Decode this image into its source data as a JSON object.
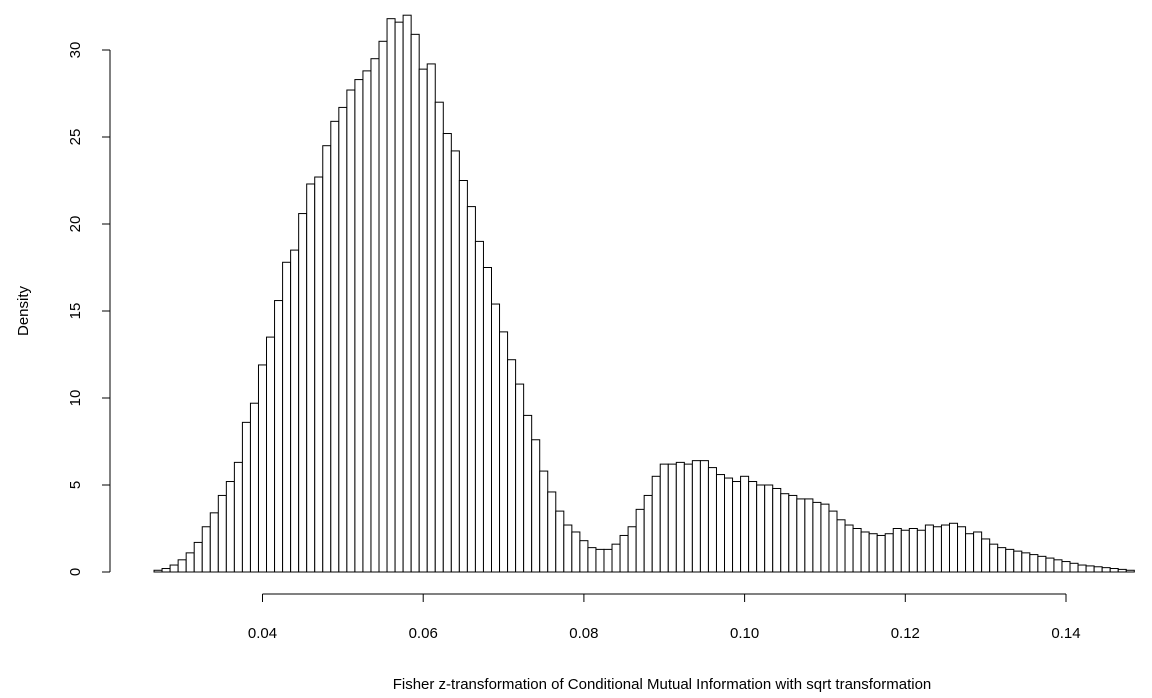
{
  "chart_data": {
    "type": "bar",
    "title": "",
    "xlabel": "Fisher z-transformation of Conditional Mutual Information with sqrt transformation",
    "ylabel": "Density",
    "xlim": [
      0.0265,
      0.1477
    ],
    "ylim": [
      0,
      32
    ],
    "bin_start": 0.0265,
    "bin_width": 0.001,
    "x_ticks": [
      0.04,
      0.06,
      0.08,
      0.1,
      0.12,
      0.14
    ],
    "x_tick_labels": [
      "0.04",
      "0.06",
      "0.08",
      "0.10",
      "0.12",
      "0.14"
    ],
    "y_ticks": [
      0,
      5,
      10,
      15,
      20,
      25,
      30
    ],
    "y_tick_labels": [
      "0",
      "5",
      "10",
      "15",
      "20",
      "25",
      "30"
    ],
    "grid": false,
    "values": [
      0.1,
      0.2,
      0.4,
      0.7,
      1.1,
      1.7,
      2.6,
      3.4,
      4.4,
      5.2,
      6.3,
      8.6,
      9.7,
      11.9,
      13.5,
      15.6,
      17.8,
      18.5,
      20.6,
      22.3,
      22.7,
      24.5,
      25.9,
      26.7,
      27.7,
      28.3,
      28.8,
      29.5,
      30.5,
      31.8,
      31.6,
      32.0,
      30.9,
      28.9,
      29.2,
      27.0,
      25.2,
      24.2,
      22.5,
      21.0,
      19.0,
      17.5,
      15.4,
      13.8,
      12.2,
      10.8,
      9.0,
      7.6,
      5.8,
      4.6,
      3.5,
      2.7,
      2.3,
      1.8,
      1.4,
      1.3,
      1.3,
      1.6,
      2.1,
      2.6,
      3.6,
      4.4,
      5.5,
      6.2,
      6.2,
      6.3,
      6.2,
      6.4,
      6.4,
      6.0,
      5.6,
      5.4,
      5.2,
      5.5,
      5.2,
      5.0,
      5.0,
      4.8,
      4.5,
      4.4,
      4.2,
      4.2,
      4.0,
      3.9,
      3.5,
      3.0,
      2.7,
      2.5,
      2.3,
      2.2,
      2.1,
      2.2,
      2.5,
      2.4,
      2.5,
      2.4,
      2.7,
      2.6,
      2.7,
      2.8,
      2.6,
      2.2,
      2.3,
      1.9,
      1.6,
      1.4,
      1.3,
      1.2,
      1.1,
      1.0,
      0.9,
      0.8,
      0.7,
      0.6,
      0.5,
      0.4,
      0.35,
      0.3,
      0.25,
      0.2,
      0.15,
      0.1
    ]
  }
}
